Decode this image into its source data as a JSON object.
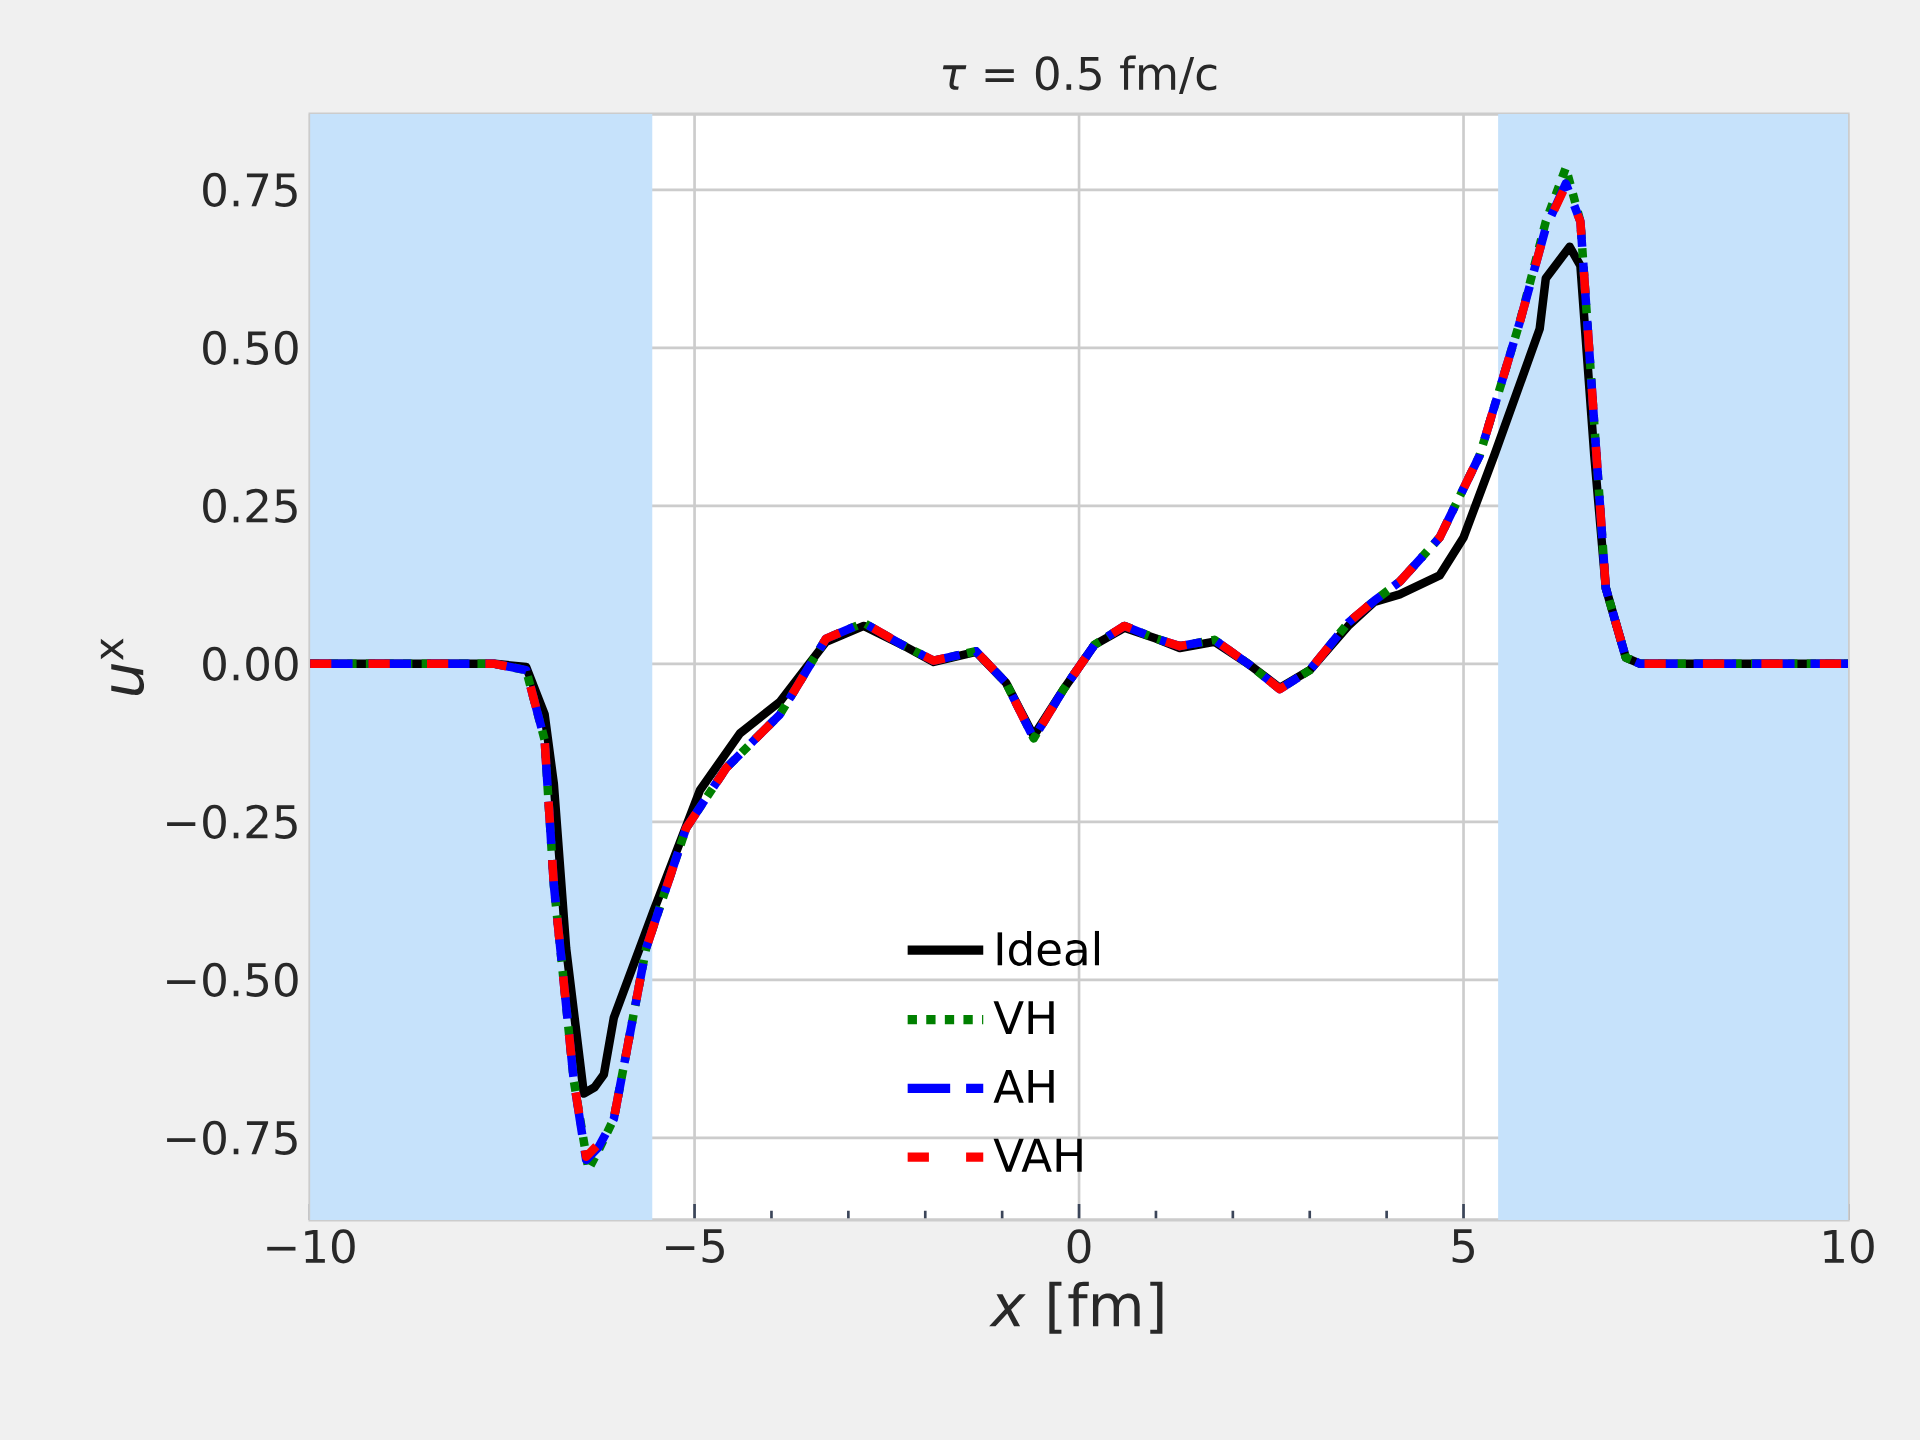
{
  "chart_data": {
    "type": "line",
    "title": "*τ* = 0.5 fm/c",
    "xlabel": "*x* [fm]",
    "ylabel": "*u*$^{x}$",
    "xlim": [
      -10,
      10
    ],
    "ylim": [
      -0.88,
      0.87
    ],
    "xticks": [
      {
        "value": -10,
        "label": "−10"
      },
      {
        "value": -5,
        "label": "−5"
      },
      0,
      5,
      10
    ],
    "yticks": [
      {
        "value": -0.75,
        "label": "−0.75"
      },
      {
        "value": -0.5,
        "label": "−0.50"
      },
      {
        "value": -0.25,
        "label": "−0.25"
      },
      {
        "value": 0,
        "label": "0.00"
      },
      {
        "value": 0.25,
        "label": "0.25"
      },
      {
        "value": 0.5,
        "label": "0.50"
      },
      {
        "value": 0.75,
        "label": "0.75"
      }
    ],
    "grid": true,
    "legend": "bottom",
    "bands": [
      {
        "axis": "x",
        "from": -10,
        "to": -5.55,
        "color": "#c6e2fb"
      },
      {
        "axis": "x",
        "from": 5.45,
        "to": 10,
        "color": "#c6e2fb"
      }
    ],
    "series": [
      {
        "name": "Ideal",
        "color": "#000000",
        "line_style": "solid",
        "x": [
          -10,
          -7.6,
          -7.19,
          -6.95,
          -6.83,
          -6.67,
          -6.44,
          -6.3,
          -6.18,
          -6.05,
          -5.53,
          -4.93,
          -4.41,
          -3.89,
          -3.29,
          -2.8,
          -2.3,
          -1.89,
          -1.34,
          -0.95,
          -0.59,
          -0.2,
          0.2,
          0.59,
          1.0,
          1.31,
          1.76,
          2.2,
          2.61,
          3.0,
          3.5,
          3.84,
          4.17,
          4.69,
          5.0,
          5.4,
          5.99,
          6.07,
          6.38,
          6.52,
          6.7,
          6.85,
          7.11,
          7.3,
          10
        ],
        "values": [
          0,
          0,
          -0.005,
          -0.08,
          -0.19,
          -0.45,
          -0.68,
          -0.67,
          -0.65,
          -0.56,
          -0.39,
          -0.2,
          -0.11,
          -0.06,
          0.035,
          0.06,
          0.03,
          0.003,
          0.019,
          -0.03,
          -0.114,
          -0.04,
          0.03,
          0.057,
          0.04,
          0.025,
          0.035,
          0.0,
          -0.038,
          -0.01,
          0.06,
          0.098,
          0.11,
          0.14,
          0.2,
          0.33,
          0.53,
          0.61,
          0.66,
          0.63,
          0.33,
          0.12,
          0.01,
          0,
          0
        ]
      },
      {
        "name": "VH",
        "color": "#008000",
        "line_style": "dotted",
        "x": [
          -10,
          -7.6,
          -7.19,
          -6.95,
          -6.83,
          -6.57,
          -6.38,
          -6.25,
          -6.05,
          -5.63,
          -5.11,
          -4.59,
          -3.89,
          -3.29,
          -2.8,
          -2.3,
          -1.89,
          -1.34,
          -0.95,
          -0.59,
          -0.2,
          0.2,
          0.59,
          1.0,
          1.31,
          1.76,
          2.2,
          2.61,
          3.0,
          3.5,
          3.84,
          4.17,
          4.69,
          5.21,
          5.73,
          6.07,
          6.33,
          6.52,
          6.7,
          6.85,
          7.11,
          7.3,
          10
        ],
        "values": [
          0,
          0,
          -0.01,
          -0.12,
          -0.35,
          -0.66,
          -0.8,
          -0.77,
          -0.72,
          -0.45,
          -0.26,
          -0.165,
          -0.08,
          0.04,
          0.065,
          0.03,
          0.005,
          0.02,
          -0.03,
          -0.118,
          -0.04,
          0.03,
          0.06,
          0.04,
          0.028,
          0.038,
          0.0,
          -0.04,
          -0.01,
          0.065,
          0.1,
          0.13,
          0.2,
          0.33,
          0.54,
          0.7,
          0.785,
          0.7,
          0.38,
          0.12,
          0.01,
          0,
          0
        ]
      },
      {
        "name": "AH",
        "color": "#0000ff",
        "line_style": "dashed",
        "x": [
          -10,
          -7.6,
          -7.19,
          -6.95,
          -6.83,
          -6.57,
          -6.41,
          -6.25,
          -6.05,
          -5.63,
          -5.11,
          -4.59,
          -3.89,
          -3.29,
          -2.8,
          -2.3,
          -1.89,
          -1.34,
          -0.95,
          -0.59,
          -0.2,
          0.2,
          0.59,
          1.0,
          1.31,
          1.76,
          2.2,
          2.61,
          3.0,
          3.5,
          3.84,
          4.17,
          4.69,
          5.21,
          5.73,
          6.07,
          6.33,
          6.52,
          6.7,
          6.85,
          7.11,
          7.3,
          10
        ],
        "values": [
          0,
          0,
          -0.01,
          -0.12,
          -0.35,
          -0.66,
          -0.785,
          -0.765,
          -0.72,
          -0.45,
          -0.26,
          -0.165,
          -0.08,
          0.04,
          0.065,
          0.03,
          0.005,
          0.02,
          -0.03,
          -0.118,
          -0.04,
          0.03,
          0.06,
          0.04,
          0.028,
          0.038,
          0.0,
          -0.04,
          -0.01,
          0.065,
          0.1,
          0.13,
          0.2,
          0.33,
          0.54,
          0.69,
          0.76,
          0.7,
          0.38,
          0.12,
          0.01,
          0,
          0
        ]
      },
      {
        "name": "VAH",
        "color": "#ff0000",
        "line_style": "dashed",
        "x": [
          -10,
          -7.6,
          -7.19,
          -6.95,
          -6.83,
          -6.57,
          -6.41,
          -6.25,
          -6.05,
          -5.63,
          -5.11,
          -4.59,
          -3.89,
          -3.29,
          -2.8,
          -2.3,
          -1.89,
          -1.34,
          -0.95,
          -0.59,
          -0.2,
          0.2,
          0.59,
          1.0,
          1.31,
          1.76,
          2.2,
          2.61,
          3.0,
          3.5,
          3.84,
          4.17,
          4.69,
          5.21,
          5.73,
          6.07,
          6.33,
          6.52,
          6.7,
          6.85,
          7.11,
          7.3,
          10
        ],
        "values": [
          0,
          0,
          -0.01,
          -0.12,
          -0.35,
          -0.66,
          -0.78,
          -0.76,
          -0.72,
          -0.45,
          -0.26,
          -0.165,
          -0.08,
          0.04,
          0.065,
          0.03,
          0.005,
          0.02,
          -0.03,
          -0.118,
          -0.04,
          0.03,
          0.06,
          0.04,
          0.028,
          0.038,
          0.0,
          -0.04,
          -0.01,
          0.065,
          0.1,
          0.13,
          0.2,
          0.33,
          0.54,
          0.69,
          0.757,
          0.7,
          0.38,
          0.12,
          0.01,
          0,
          0
        ]
      }
    ]
  }
}
